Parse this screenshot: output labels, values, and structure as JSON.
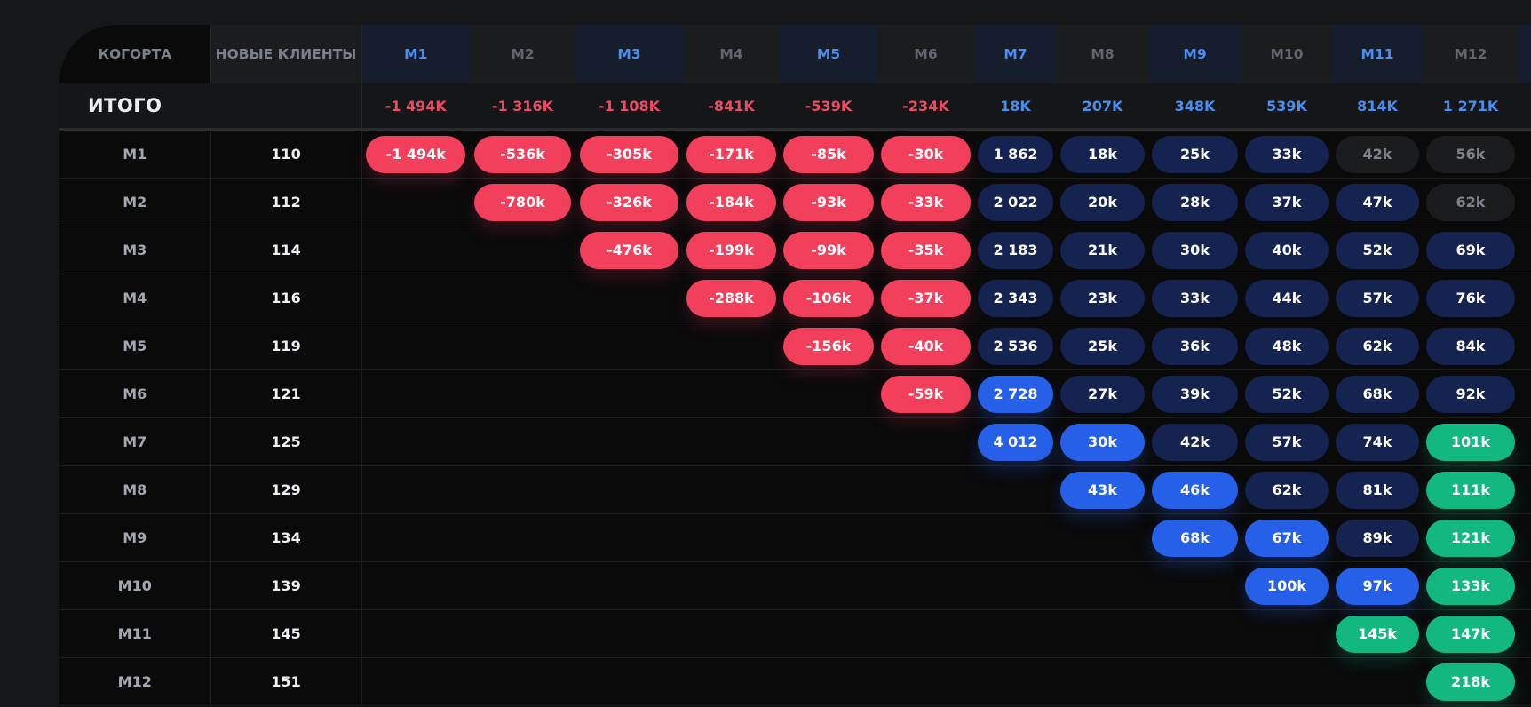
{
  "header": {
    "cohort_label": "КОГОРТА",
    "new_clients_label": "НОВЫЕ КЛИЕНТЫ",
    "months": [
      "M1",
      "M2",
      "M3",
      "M4",
      "M5",
      "M6",
      "M7",
      "M8",
      "M9",
      "M10",
      "M11",
      "M12"
    ]
  },
  "totals": {
    "label": "ИТОГО",
    "values": [
      "-1 494K",
      "-1 316K",
      "-1 108K",
      "-841K",
      "-539K",
      "-234K",
      "18K",
      "207K",
      "348K",
      "539K",
      "814K",
      "1 271K"
    ]
  },
  "colors": {
    "negative": "#f13f5c",
    "dark_navy": "#152350",
    "blue": "#2660e8",
    "green": "#12b880",
    "muted_gray": "#1b1c1e",
    "header_highlight": "#4a8ef2"
  },
  "rows": [
    {
      "cohort": "M1",
      "new_clients": "110",
      "cells": [
        {
          "v": "-1 494k",
          "t": "neg"
        },
        {
          "v": "-536k",
          "t": "neg"
        },
        {
          "v": "-305k",
          "t": "neg"
        },
        {
          "v": "-171k",
          "t": "neg"
        },
        {
          "v": "-85k",
          "t": "neg"
        },
        {
          "v": "-30k",
          "t": "neg"
        },
        {
          "v": "1 862",
          "t": "dark"
        },
        {
          "v": "18k",
          "t": "dark"
        },
        {
          "v": "25k",
          "t": "dark"
        },
        {
          "v": "33k",
          "t": "dark"
        },
        {
          "v": "42k",
          "t": "gray"
        },
        {
          "v": "56k",
          "t": "gray"
        }
      ]
    },
    {
      "cohort": "M2",
      "new_clients": "112",
      "cells": [
        null,
        {
          "v": "-780k",
          "t": "neg"
        },
        {
          "v": "-326k",
          "t": "neg"
        },
        {
          "v": "-184k",
          "t": "neg"
        },
        {
          "v": "-93k",
          "t": "neg"
        },
        {
          "v": "-33k",
          "t": "neg"
        },
        {
          "v": "2 022",
          "t": "dark"
        },
        {
          "v": "20k",
          "t": "dark"
        },
        {
          "v": "28k",
          "t": "dark"
        },
        {
          "v": "37k",
          "t": "dark"
        },
        {
          "v": "47k",
          "t": "dark"
        },
        {
          "v": "62k",
          "t": "gray"
        }
      ]
    },
    {
      "cohort": "M3",
      "new_clients": "114",
      "cells": [
        null,
        null,
        {
          "v": "-476k",
          "t": "neg"
        },
        {
          "v": "-199k",
          "t": "neg"
        },
        {
          "v": "-99k",
          "t": "neg"
        },
        {
          "v": "-35k",
          "t": "neg"
        },
        {
          "v": "2 183",
          "t": "dark"
        },
        {
          "v": "21k",
          "t": "dark"
        },
        {
          "v": "30k",
          "t": "dark"
        },
        {
          "v": "40k",
          "t": "dark"
        },
        {
          "v": "52k",
          "t": "dark"
        },
        {
          "v": "69k",
          "t": "dark"
        }
      ]
    },
    {
      "cohort": "M4",
      "new_clients": "116",
      "cells": [
        null,
        null,
        null,
        {
          "v": "-288k",
          "t": "neg"
        },
        {
          "v": "-106k",
          "t": "neg"
        },
        {
          "v": "-37k",
          "t": "neg"
        },
        {
          "v": "2 343",
          "t": "dark"
        },
        {
          "v": "23k",
          "t": "dark"
        },
        {
          "v": "33k",
          "t": "dark"
        },
        {
          "v": "44k",
          "t": "dark"
        },
        {
          "v": "57k",
          "t": "dark"
        },
        {
          "v": "76k",
          "t": "dark"
        }
      ]
    },
    {
      "cohort": "M5",
      "new_clients": "119",
      "cells": [
        null,
        null,
        null,
        null,
        {
          "v": "-156k",
          "t": "neg"
        },
        {
          "v": "-40k",
          "t": "neg"
        },
        {
          "v": "2 536",
          "t": "dark"
        },
        {
          "v": "25k",
          "t": "dark"
        },
        {
          "v": "36k",
          "t": "dark"
        },
        {
          "v": "48k",
          "t": "dark"
        },
        {
          "v": "62k",
          "t": "dark"
        },
        {
          "v": "84k",
          "t": "dark"
        }
      ]
    },
    {
      "cohort": "M6",
      "new_clients": "121",
      "cells": [
        null,
        null,
        null,
        null,
        null,
        {
          "v": "-59k",
          "t": "neg"
        },
        {
          "v": "2 728",
          "t": "blue"
        },
        {
          "v": "27k",
          "t": "dark"
        },
        {
          "v": "39k",
          "t": "dark"
        },
        {
          "v": "52k",
          "t": "dark"
        },
        {
          "v": "68k",
          "t": "dark"
        },
        {
          "v": "92k",
          "t": "dark"
        }
      ]
    },
    {
      "cohort": "M7",
      "new_clients": "125",
      "cells": [
        null,
        null,
        null,
        null,
        null,
        null,
        {
          "v": "4 012",
          "t": "blue"
        },
        {
          "v": "30k",
          "t": "blue"
        },
        {
          "v": "42k",
          "t": "dark"
        },
        {
          "v": "57k",
          "t": "dark"
        },
        {
          "v": "74k",
          "t": "dark"
        },
        {
          "v": "101k",
          "t": "green"
        }
      ]
    },
    {
      "cohort": "M8",
      "new_clients": "129",
      "cells": [
        null,
        null,
        null,
        null,
        null,
        null,
        null,
        {
          "v": "43k",
          "t": "blue"
        },
        {
          "v": "46k",
          "t": "blue"
        },
        {
          "v": "62k",
          "t": "dark"
        },
        {
          "v": "81k",
          "t": "dark"
        },
        {
          "v": "111k",
          "t": "green"
        }
      ]
    },
    {
      "cohort": "M9",
      "new_clients": "134",
      "cells": [
        null,
        null,
        null,
        null,
        null,
        null,
        null,
        null,
        {
          "v": "68k",
          "t": "blue"
        },
        {
          "v": "67k",
          "t": "blue"
        },
        {
          "v": "89k",
          "t": "dark"
        },
        {
          "v": "121k",
          "t": "green"
        }
      ]
    },
    {
      "cohort": "M10",
      "new_clients": "139",
      "cells": [
        null,
        null,
        null,
        null,
        null,
        null,
        null,
        null,
        null,
        {
          "v": "100k",
          "t": "blue"
        },
        {
          "v": "97k",
          "t": "blue"
        },
        {
          "v": "133k",
          "t": "green"
        }
      ]
    },
    {
      "cohort": "M11",
      "new_clients": "145",
      "cells": [
        null,
        null,
        null,
        null,
        null,
        null,
        null,
        null,
        null,
        null,
        {
          "v": "145k",
          "t": "green"
        },
        {
          "v": "147k",
          "t": "green"
        }
      ]
    },
    {
      "cohort": "M12",
      "new_clients": "151",
      "cells": [
        null,
        null,
        null,
        null,
        null,
        null,
        null,
        null,
        null,
        null,
        null,
        {
          "v": "218k",
          "t": "green"
        }
      ]
    }
  ]
}
